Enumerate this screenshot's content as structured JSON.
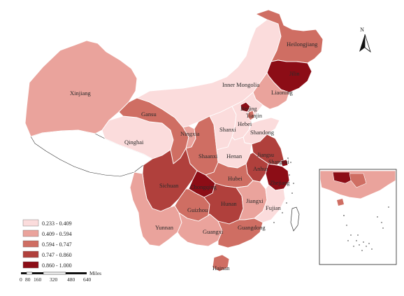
{
  "map": {
    "colors": {
      "c1": "#fbdcdc",
      "c2": "#eaa39c",
      "c3": "#cf6e63",
      "c4": "#b0403c",
      "c5": "#8c0d16",
      "background": "#ffffff",
      "boundary": "#ffffff"
    },
    "legend": [
      {
        "label": "0.233 - 0.409",
        "color": "#fbdcdc"
      },
      {
        "label": "0.409 - 0.594",
        "color": "#eaa39c"
      },
      {
        "label": "0.594 - 0.747",
        "color": "#cf6e63"
      },
      {
        "label": "0.747 - 0.860",
        "color": "#b0403c"
      },
      {
        "label": "0.860 - 1.000",
        "color": "#8c0d16"
      }
    ],
    "north_arrow": {
      "label": "N"
    },
    "scale_bar": {
      "unit": "Miles",
      "ticks": [
        "0",
        "80",
        "160",
        "320",
        "480",
        "640"
      ]
    },
    "labels": {
      "heilongjiang": "Heilongjiang",
      "jilin": "Jilin",
      "liaoning": "Liaoning",
      "inner_mongolia": "Inner Mongolia",
      "xinjiang": "Xinjiang",
      "gansu": "Gansu",
      "qinghai": "Qinghai",
      "ningxia": "Ningxia",
      "shanxi": "Shanxi",
      "beijing": "Beijing",
      "tianjin": "Tianjin",
      "hebei": "Hebei",
      "shandong": "Shandong",
      "henan": "Henan",
      "shaanxi": "Shaanxi",
      "jiangsu": "Jiangsu",
      "shanghai": "Shanghai",
      "anhui": "Anhui",
      "zhejiang": "Zhejiang",
      "hubei": "Hubei",
      "sichuan": "Sichuan",
      "chongqing": "Chongqing",
      "guizhou": "Guizhou",
      "hunan": "Hunan",
      "jiangxi": "Jiangxi",
      "fujian": "Fujian",
      "yunnan": "Yunnan",
      "guangxi": "Guangxi",
      "guangdong": "Guangdong",
      "hainan": "Hainan"
    },
    "provinces": {
      "xinjiang": "c2",
      "tibet": "none",
      "qinghai": "c1",
      "gansu": "c3",
      "inner_mongolia": "c1",
      "heilongjiang": "c3",
      "jilin": "c5",
      "liaoning": "c2",
      "ningxia": "c2",
      "shaanxi": "c3",
      "shanxi": "c1",
      "beijing": "c5",
      "tianjin": "c3",
      "hebei": "c1",
      "shandong": "c1",
      "henan": "c1",
      "jiangsu": "c4",
      "shanghai": "c5",
      "anhui": "c4",
      "zhejiang": "c5",
      "hubei": "c3",
      "sichuan": "c4",
      "chongqing": "c5",
      "guizhou": "c3",
      "hunan": "c4",
      "jiangxi": "c2",
      "fujian": "c1",
      "yunnan": "c2",
      "guangxi": "c2",
      "guangdong": "c3",
      "hainan": "c3",
      "south_sea_inset": "c2"
    }
  }
}
